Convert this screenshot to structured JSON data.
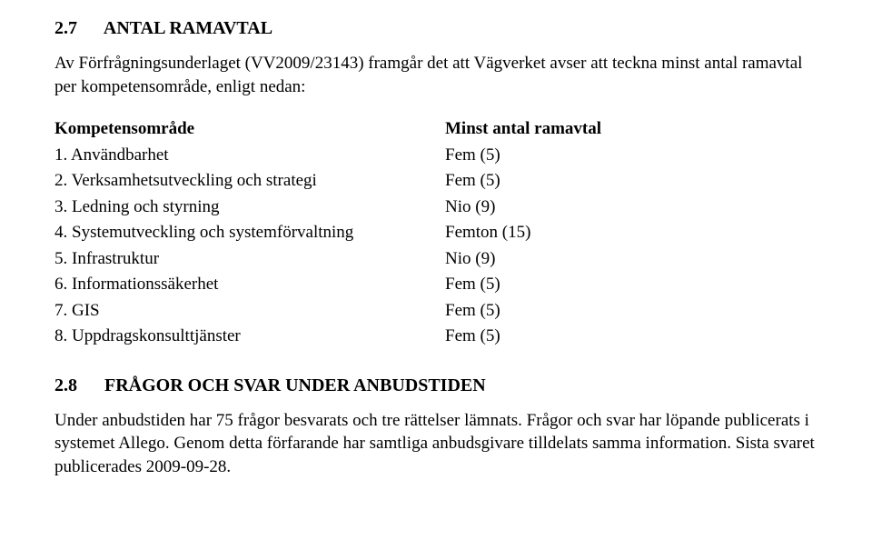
{
  "colors": {
    "background": "#ffffff",
    "text": "#000000"
  },
  "typography": {
    "font_family": "Times New Roman",
    "heading_fontsize_pt": 15,
    "body_fontsize_pt": 14,
    "heading_weight": "bold"
  },
  "section1": {
    "number": "2.7",
    "title": "ANTAL RAMAVTAL",
    "intro": "Av Förfrågningsunderlaget (VV2009/23143) framgår det att Vägverket avser att teckna minst antal ramavtal per kompetensområde, enligt nedan:"
  },
  "table": {
    "header": {
      "col_a": "Kompetensområde",
      "col_b": "Minst antal ramavtal"
    },
    "rows": [
      {
        "a": "1. Användbarhet",
        "b": "Fem (5)"
      },
      {
        "a": "2. Verksamhetsutveckling och strategi",
        "b": "Fem (5)"
      },
      {
        "a": "3. Ledning och styrning",
        "b": "Nio (9)"
      },
      {
        "a": "4. Systemutveckling och systemförvaltning",
        "b": "Femton (15)"
      },
      {
        "a": "5. Infrastruktur",
        "b": "Nio (9)"
      },
      {
        "a": "6. Informationssäkerhet",
        "b": "Fem (5)"
      },
      {
        "a": "7. GIS",
        "b": "Fem (5)"
      },
      {
        "a": "8. Uppdragskonsulttjänster",
        "b": "Fem (5)"
      }
    ]
  },
  "section2": {
    "number": "2.8",
    "title": "FRÅGOR OCH SVAR UNDER ANBUDSTIDEN",
    "para": "Under anbudstiden har 75 frågor besvarats och tre rättelser lämnats. Frågor och svar har löpande publicerats i systemet Allego. Genom detta förfarande har samtliga anbudsgivare tilldelats samma information. Sista svaret publicerades 2009-09-28."
  }
}
